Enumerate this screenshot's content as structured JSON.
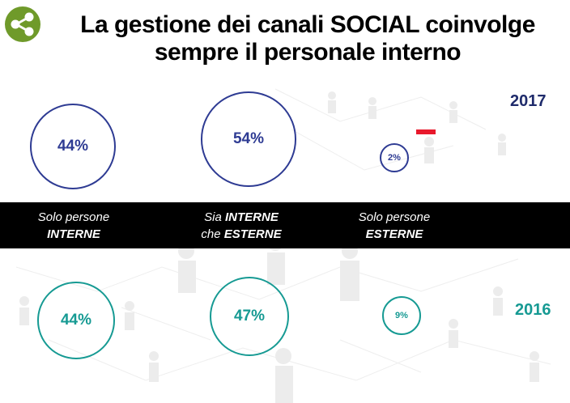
{
  "title": "La gestione dei canali SOCIAL coinvolge sempre il personale interno",
  "logo_icon": "share-icon",
  "colors": {
    "series_2017": "#2e3b93",
    "series_2016": "#169a93",
    "logo": "#6f9a2a",
    "band": "#000000",
    "marker": "#e8192c"
  },
  "categories": [
    {
      "line1": "Solo persone",
      "bold": "INTERNE",
      "line2_prefix": ""
    },
    {
      "line1_prefix": "Sia ",
      "line1_bold": "INTERNE",
      "line2_prefix": "che ",
      "bold": "ESTERNE"
    },
    {
      "line1": "Solo persone",
      "bold": "ESTERNE",
      "line2_prefix": ""
    }
  ],
  "chart_data": {
    "type": "bubble",
    "title": "La gestione dei canali SOCIAL coinvolge sempre il personale interno",
    "categories": [
      "Solo persone INTERNE",
      "Sia INTERNE che ESTERNE",
      "Solo persone ESTERNE"
    ],
    "series": [
      {
        "name": "2017",
        "values": [
          44,
          54,
          2
        ],
        "labels": [
          "44%",
          "54%",
          "2%"
        ]
      },
      {
        "name": "2016",
        "values": [
          44,
          47,
          9
        ],
        "labels": [
          "44%",
          "47%",
          "9%"
        ]
      }
    ]
  }
}
